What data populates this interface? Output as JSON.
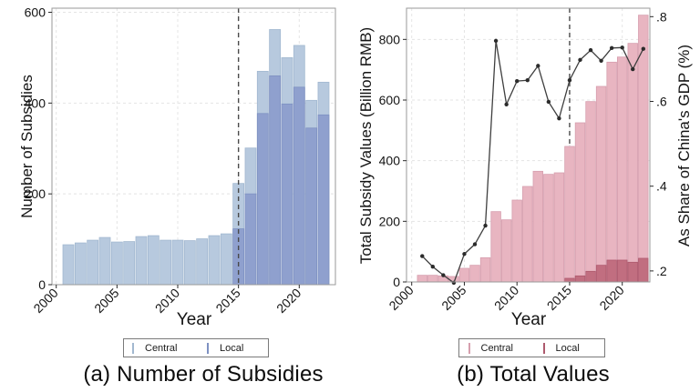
{
  "chart_data": [
    {
      "id": "panel_a",
      "type": "bar",
      "overlay_bars": true,
      "caption": "(a) Number of Subsidies",
      "xlabel": "Year",
      "ylabel": "Number of Subsidies",
      "x": [
        2001,
        2002,
        2003,
        2004,
        2005,
        2006,
        2007,
        2008,
        2009,
        2010,
        2011,
        2012,
        2013,
        2014,
        2015,
        2016,
        2017,
        2018,
        2019,
        2020,
        2021,
        2022
      ],
      "series": [
        {
          "name": "Central",
          "color": "#b7c9de",
          "border": "#a2b8d0",
          "values": [
            88,
            92,
            98,
            104,
            94,
            95,
            106,
            108,
            98,
            98,
            97,
            101,
            108,
            112,
            223,
            301,
            470,
            562,
            500,
            527,
            406,
            446
          ]
        },
        {
          "name": "Local",
          "color": "#8fa0ce",
          "border": "#7e91c2",
          "values": [
            0,
            0,
            0,
            0,
            0,
            0,
            0,
            0,
            0,
            0,
            0,
            0,
            0,
            0,
            123,
            200,
            377,
            460,
            398,
            435,
            345,
            374
          ]
        }
      ],
      "yticks": [
        0,
        200,
        400,
        600
      ],
      "xticks": [
        2000,
        2005,
        2010,
        2015,
        2020
      ],
      "ylim": [
        0,
        609
      ],
      "ref_line_x": 2015,
      "grid": true,
      "legend_position": "bottom"
    },
    {
      "id": "panel_b",
      "type": "bar+line",
      "overlay_bars": true,
      "caption": "(b) Total Values",
      "xlabel": "Year",
      "ylabel_left": "Total Subsidy Values (Billion RMB)",
      "ylabel_right": "As Share of China's GDP (%)",
      "x": [
        2001,
        2002,
        2003,
        2004,
        2005,
        2006,
        2007,
        2008,
        2009,
        2010,
        2011,
        2012,
        2013,
        2014,
        2015,
        2016,
        2017,
        2018,
        2019,
        2020,
        2021,
        2022
      ],
      "series": [
        {
          "name": "Central",
          "color": "#e8b5c1",
          "border": "#d69fae",
          "values": [
            22,
            22,
            20,
            18,
            45,
            55,
            80,
            232,
            205,
            270,
            315,
            365,
            355,
            360,
            447,
            525,
            595,
            645,
            725,
            742,
            787,
            880
          ]
        },
        {
          "name": "Local",
          "color": "#c16e80",
          "border": "#ae5a6e",
          "values": [
            0,
            0,
            0,
            0,
            0,
            0,
            0,
            0,
            0,
            0,
            0,
            0,
            0,
            0,
            12,
            20,
            35,
            55,
            72,
            72,
            65,
            78
          ]
        }
      ],
      "line_series": {
        "name": "As Share of China's GDP (%)",
        "axis": "right",
        "color": "#3f3f3f",
        "marker_color": "#2b2b2b",
        "values": [
          0.235,
          0.21,
          0.19,
          0.172,
          0.24,
          0.263,
          0.307,
          0.743,
          0.593,
          0.648,
          0.65,
          0.684,
          0.599,
          0.56,
          0.65,
          0.698,
          0.721,
          0.696,
          0.726,
          0.727,
          0.676,
          0.724
        ]
      },
      "yticks_left": [
        0,
        200,
        400,
        600,
        800
      ],
      "yticks_right_values": [
        0.2,
        0.4,
        0.6,
        0.8
      ],
      "yticks_right_labels": [
        ".2",
        ".4",
        ".6",
        ".8"
      ],
      "xticks": [
        2000,
        2005,
        2010,
        2015,
        2020
      ],
      "ylim_left": [
        0,
        903
      ],
      "ylim_right": [
        0.174,
        0.82
      ],
      "ref_line_x": 2015,
      "grid": true,
      "legend_position": "bottom"
    }
  ],
  "style_colors": {
    "grid": "#e4e4e4",
    "plot_border": "#9a9a9a",
    "tick": "#2a2a2a",
    "tick_label": "#141414",
    "ref_line": "#4a4a4a"
  }
}
